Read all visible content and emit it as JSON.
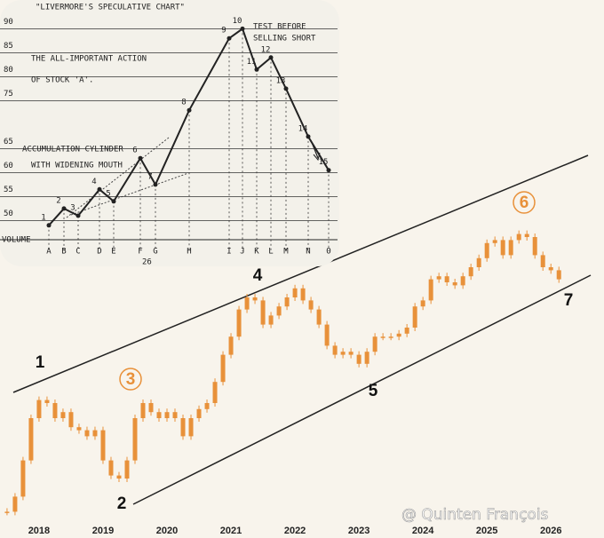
{
  "chart_data": [
    {
      "type": "line",
      "title": "\"Livermore's Speculative Chart\"",
      "xlabel": "Volume",
      "categories": [
        "A",
        "B",
        "C",
        "D",
        "E",
        "F",
        "G",
        "H",
        "I",
        "J",
        "K",
        "L",
        "M",
        "N",
        "O"
      ],
      "values": [
        49,
        52.5,
        51,
        56.5,
        54,
        63,
        57.5,
        73,
        88,
        90,
        81.5,
        84,
        77.5,
        67.5,
        60.5
      ],
      "point_labels": [
        "1",
        "2",
        "3",
        "4",
        "5",
        "6",
        "7",
        "8",
        "9",
        "10",
        "11",
        "12",
        "13",
        "14",
        "15"
      ],
      "ylim": [
        46,
        96
      ],
      "yticks": [
        50,
        55,
        60,
        65,
        75,
        80,
        85,
        90
      ],
      "color": "#222222",
      "annotations": [
        "The All-Important Action",
        "of Stock 'A'.",
        "Test before",
        "selling short",
        "Accumulation cylinder",
        "with widening mouth",
        "26"
      ]
    },
    {
      "type": "candlestick",
      "color": "#e8913a",
      "x": [
        2017.5,
        2017.625,
        2017.75,
        2017.875,
        2018,
        2018.125,
        2018.25,
        2018.375,
        2018.5,
        2018.625,
        2018.75,
        2018.875,
        2019,
        2019.125,
        2019.25,
        2019.375,
        2019.5,
        2019.625,
        2019.75,
        2019.875,
        2020,
        2020.125,
        2020.25,
        2020.375,
        2020.5,
        2020.625,
        2020.75,
        2020.875,
        2021,
        2021.125,
        2021.25,
        2021.375,
        2021.5,
        2021.625,
        2021.75,
        2021.875,
        2022,
        2022.125,
        2022.25,
        2022.375,
        2022.5,
        2022.625,
        2022.75,
        2022.875,
        2023,
        2023.125,
        2023.25,
        2023.375,
        2023.5,
        2023.625,
        2023.75,
        2023.875,
        2024,
        2024.125,
        2024.25,
        2024.375,
        2024.5,
        2024.625,
        2024.75,
        2024.875,
        2025,
        2025.125,
        2025.25,
        2025.375,
        2025.5,
        2025.625,
        2025.75,
        2025.875,
        2026,
        2026.125
      ],
      "values": [
        4,
        9,
        21,
        35,
        41,
        40,
        35,
        37,
        32,
        31,
        29,
        31,
        21,
        16,
        15,
        21,
        35,
        40,
        37,
        35,
        37,
        35,
        29,
        35,
        38,
        40,
        47,
        56,
        62,
        71,
        75,
        74,
        66,
        69,
        72,
        75,
        78,
        74,
        71,
        66,
        59,
        56,
        57,
        56,
        53,
        57,
        62,
        62,
        62,
        63,
        65,
        72,
        74,
        81,
        82,
        80,
        79,
        82,
        85,
        88,
        93,
        94,
        89,
        94,
        96,
        95,
        89,
        85,
        84,
        81
      ],
      "xlim": [
        2017.39,
        2026.83
      ],
      "xticks": [
        2018,
        2019,
        2020,
        2021,
        2022,
        2023,
        2024,
        2025,
        2026
      ],
      "ylim": [
        0,
        100
      ],
      "annotations": [
        "1",
        "2",
        "3",
        "4",
        "5",
        "6",
        "7",
        "@ Quinten François"
      ]
    }
  ]
}
